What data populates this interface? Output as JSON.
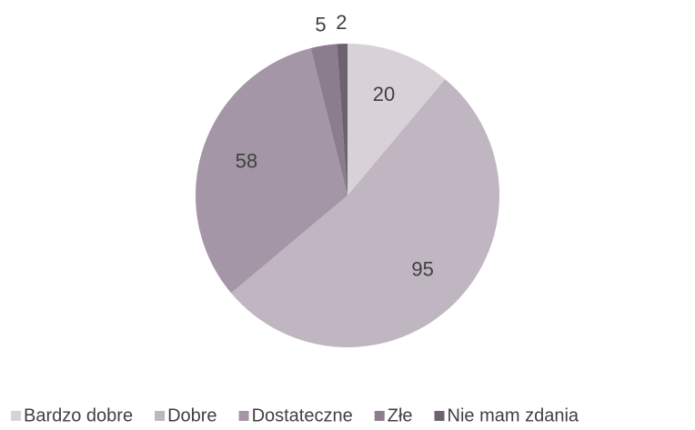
{
  "chart_data": {
    "type": "pie",
    "categories": [
      "Bardzo dobre",
      "Dobre",
      "Dostateczne",
      "Złe",
      "Nie mam zdania"
    ],
    "values": [
      20,
      95,
      58,
      5,
      2
    ],
    "colors": [
      "#d8d2d8",
      "#c0b6c1",
      "#a496a6",
      "#8c7d8e",
      "#6e6170"
    ],
    "legend": "bottom"
  }
}
